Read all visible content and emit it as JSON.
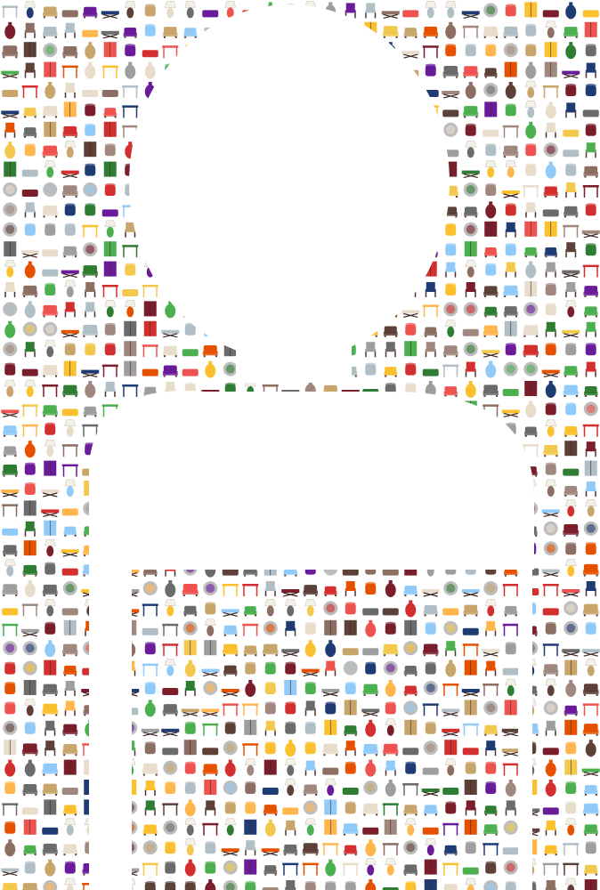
{
  "image": {
    "background_color": "#ffffff",
    "silhouette_color": "#ffffff",
    "silhouette": "person-avatar",
    "tile_kinds": [
      "armchair",
      "side-chair",
      "stool",
      "ottoman",
      "vase",
      "lamp",
      "table",
      "cabinet",
      "bench",
      "mirror",
      "sofa",
      "drum-stool"
    ],
    "palette": [
      "#7a1e2c",
      "#c8a66b",
      "#e8dccb",
      "#6b6b6b",
      "#1f3b73",
      "#2e7d32",
      "#e65100",
      "#f2c94c",
      "#8d6e63",
      "#b0bec5",
      "#d32f2f",
      "#5d4037",
      "#9e9e9e",
      "#6a1b9a",
      "#fbc02d",
      "#4caf50",
      "#90caf9",
      "#ffb74d",
      "#a1887f",
      "#ef5350"
    ]
  }
}
